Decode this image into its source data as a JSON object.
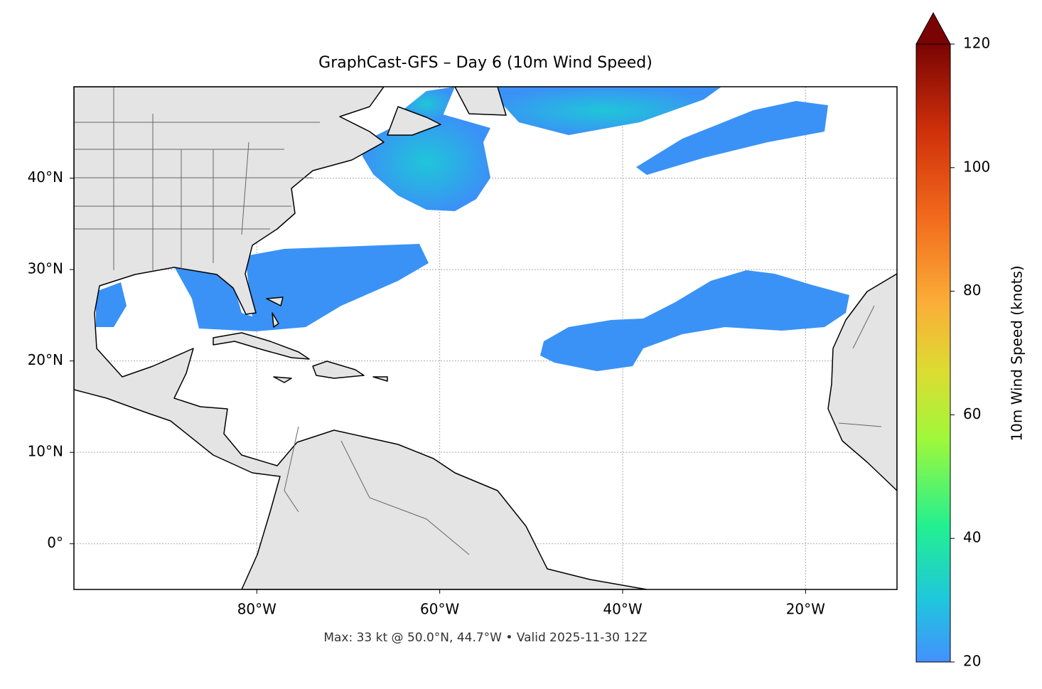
{
  "chart_data": {
    "type": "map",
    "title": "GraphCast-GFS – Day 6 (10m Wind Speed)",
    "annotation": "Max: 33 kt @ 50.0°N, 44.7°W • Valid 2025-11-30 12Z",
    "xlim": [
      -100,
      -10
    ],
    "ylim": [
      -5,
      50
    ],
    "xticks": [
      {
        "value": -80,
        "label": "80°W"
      },
      {
        "value": -60,
        "label": "60°W"
      },
      {
        "value": -40,
        "label": "40°W"
      },
      {
        "value": -20,
        "label": "20°W"
      }
    ],
    "yticks": [
      {
        "value": 0,
        "label": "0°"
      },
      {
        "value": 10,
        "label": "10°N"
      },
      {
        "value": 20,
        "label": "20°N"
      },
      {
        "value": 30,
        "label": "30°N"
      },
      {
        "value": 40,
        "label": "40°N"
      }
    ],
    "grid": true,
    "colorbar": {
      "label": "10m Wind Speed (knots)",
      "lim": [
        20,
        120
      ],
      "ticks": [
        20,
        40,
        60,
        80,
        100,
        120
      ]
    }
  }
}
